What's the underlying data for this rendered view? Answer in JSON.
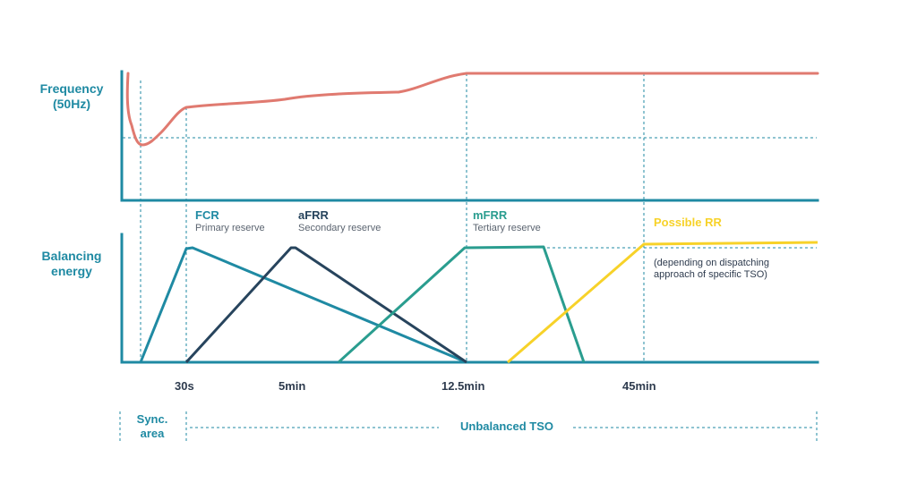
{
  "labels": {
    "frequency_axis": [
      "Frequency",
      "(50Hz)"
    ],
    "balancing_axis": [
      "Balancing",
      "energy"
    ],
    "ticks": [
      "30s",
      "5min",
      "12.5min",
      "45min"
    ],
    "reserves": [
      {
        "name": "FCR",
        "sub": "Primary reserve",
        "color": "#1f8aa3"
      },
      {
        "name": "aFRR",
        "sub": "Secondary reserve",
        "color": "#27445d"
      },
      {
        "name": "mFRR",
        "sub": "Tertiary reserve",
        "color": "#2a9d8f"
      },
      {
        "name": "Possible RR",
        "sub": "",
        "color": "#f7d229"
      }
    ],
    "rr_note": [
      "(depending on dispatching",
      "approach of specific TSO)"
    ],
    "sync_area": [
      "Sync.",
      "area"
    ],
    "unbalanced": "Unbalanced TSO"
  },
  "colors": {
    "axis": "#1f8aa3",
    "frequency_curve": "#e07a70",
    "guide": "#1f8aa3"
  }
}
